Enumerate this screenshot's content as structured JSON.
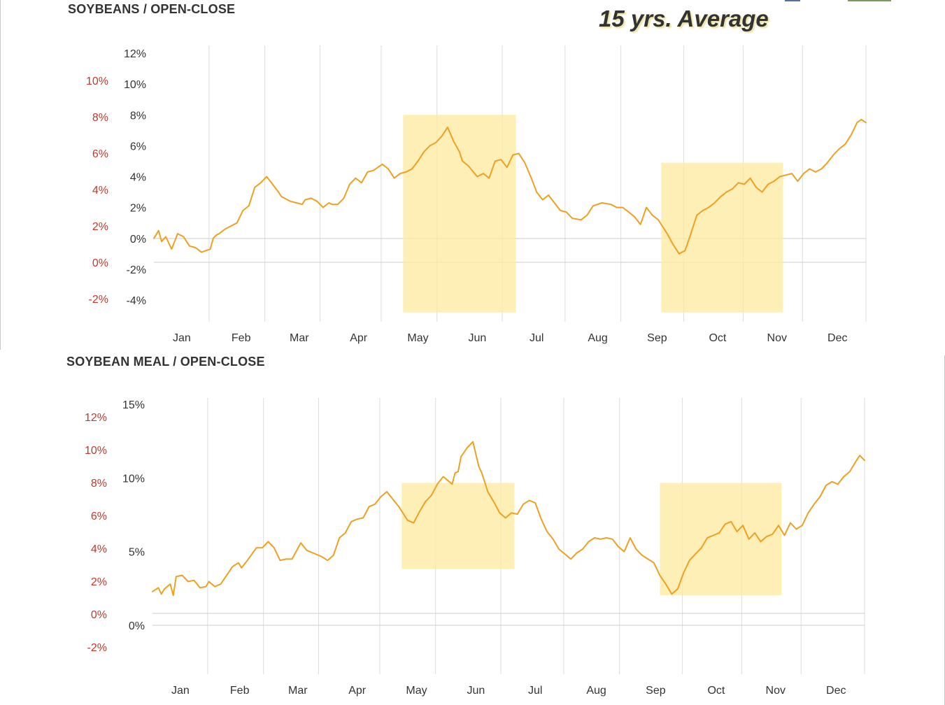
{
  "page": {
    "title": "15 yrs. Average"
  },
  "colors": {
    "line": "#f0a020",
    "highlight": "#fdeba0",
    "grid": "#dddddd",
    "zero_line": "#cccccc",
    "left_axis_text": "#c0392b",
    "right_axis_text": "#333333"
  },
  "chart_data": [
    {
      "type": "line",
      "title": "SOYBEANS / OPEN-CLOSE",
      "months": [
        "Jan",
        "Feb",
        "Mar",
        "Apr",
        "May",
        "Jun",
        "Jul",
        "Aug",
        "Sep",
        "Oct",
        "Nov",
        "Dec"
      ],
      "inner_axis_ticks": [
        "12%",
        "10%",
        "8%",
        "6%",
        "4%",
        "2%",
        "0%",
        "-2%",
        "-4%"
      ],
      "inner_axis_range": [
        -4,
        12
      ],
      "outer_axis_ticks": [
        "10%",
        "8%",
        "6%",
        "4%",
        "2%",
        "0%",
        "-2%"
      ],
      "outer_axis_range": [
        -2,
        10
      ],
      "highlight_periods": [
        {
          "from_month": 4.2,
          "to_month": 6.1,
          "y_top": 8.0,
          "y_bottom": -4.8
        },
        {
          "from_month": 8.55,
          "to_month": 10.6,
          "y_top": 4.9,
          "y_bottom": -4.8
        }
      ],
      "series": [
        {
          "x": [
            0.0,
            0.08,
            0.13,
            0.2,
            0.3,
            0.4,
            0.5,
            0.55,
            0.6,
            0.7,
            0.8,
            0.95,
            1.0,
            1.05,
            1.1,
            1.2,
            1.3,
            1.4,
            1.5,
            1.6,
            1.7,
            1.8,
            1.9,
            2.0,
            2.1,
            2.15,
            2.2,
            2.3,
            2.4,
            2.5,
            2.55,
            2.65,
            2.75,
            2.85,
            2.95,
            3.0,
            3.1,
            3.2,
            3.3,
            3.4,
            3.5,
            3.6,
            3.7,
            3.85,
            3.95,
            4.05,
            4.15,
            4.25,
            4.35,
            4.45,
            4.55,
            4.65,
            4.75,
            4.85,
            4.95,
            5.05,
            5.15,
            5.2,
            5.3,
            5.45,
            5.55,
            5.65,
            5.75,
            5.85,
            5.95,
            6.05,
            6.15,
            6.25,
            6.35,
            6.45,
            6.55,
            6.65,
            6.75,
            6.85,
            6.95,
            7.05,
            7.2,
            7.3,
            7.4,
            7.55,
            7.7,
            7.8,
            7.9,
            8.0,
            8.1,
            8.2,
            8.3,
            8.4,
            8.5,
            8.55,
            8.65,
            8.75,
            8.85,
            8.95,
            9.05,
            9.15,
            9.25,
            9.35,
            9.45,
            9.55,
            9.65,
            9.75,
            9.85,
            9.95,
            10.05,
            10.15,
            10.25,
            10.35,
            10.45,
            10.55,
            10.65,
            10.75,
            10.85,
            10.95,
            11.05,
            11.15,
            11.25,
            11.35,
            11.45,
            11.55,
            11.65,
            11.75,
            11.85,
            11.92,
            12.0
          ],
          "y": [
            0.0,
            0.5,
            -0.2,
            0.1,
            -0.7,
            0.3,
            0.1,
            -0.2,
            -0.5,
            -0.6,
            -0.9,
            -0.7,
            0.0,
            0.2,
            0.3,
            0.6,
            0.8,
            1.0,
            1.8,
            2.1,
            3.3,
            3.6,
            4.0,
            3.5,
            3.0,
            2.7,
            2.6,
            2.4,
            2.3,
            2.2,
            2.5,
            2.6,
            2.4,
            2.0,
            2.3,
            2.2,
            2.2,
            2.6,
            3.5,
            3.9,
            3.6,
            4.3,
            4.4,
            4.8,
            4.5,
            3.9,
            4.2,
            4.3,
            4.5,
            5.0,
            5.6,
            6.0,
            6.2,
            6.6,
            7.2,
            6.3,
            5.6,
            5.0,
            4.7,
            4.0,
            4.2,
            3.9,
            5.0,
            5.1,
            4.6,
            5.4,
            5.5,
            4.9,
            4.0,
            3.0,
            2.5,
            2.8,
            2.3,
            1.8,
            1.7,
            1.3,
            1.2,
            1.5,
            2.1,
            2.3,
            2.2,
            2.0,
            2.0,
            1.7,
            1.4,
            0.9,
            2.0,
            1.5,
            1.2,
            0.9,
            0.3,
            -0.4,
            -1.0,
            -0.8,
            0.3,
            1.5,
            1.8,
            2.0,
            2.3,
            2.7,
            3.0,
            3.2,
            3.6,
            3.5,
            3.9,
            3.3,
            3.0,
            3.5,
            3.7,
            4.0,
            4.1,
            4.2,
            3.7,
            4.2,
            4.5,
            4.3,
            4.5,
            4.9,
            5.4,
            5.8,
            6.1,
            6.7,
            7.5,
            7.7,
            7.5
          ]
        }
      ]
    },
    {
      "type": "line",
      "title": "SOYBEAN MEAL / OPEN-CLOSE",
      "months": [
        "Jan",
        "Feb",
        "Mar",
        "Apr",
        "May",
        "Jun",
        "Jul",
        "Aug",
        "Sep",
        "Oct",
        "Nov",
        "Dec"
      ],
      "inner_axis_ticks": [
        "15%",
        "10%",
        "5%",
        "0%"
      ],
      "inner_axis_range": [
        -2.7,
        15
      ],
      "outer_axis_ticks": [
        "12%",
        "10%",
        "8%",
        "6%",
        "4%",
        "2%",
        "0%",
        "-2%"
      ],
      "outer_axis_range": [
        -2,
        12
      ],
      "highlight_periods": [
        {
          "from_month": 4.2,
          "to_month": 6.1,
          "y_top": 8.7,
          "y_bottom": 1.8
        },
        {
          "from_month": 8.55,
          "to_month": 10.6,
          "y_top": 8.7,
          "y_bottom": -0.3
        }
      ],
      "series": [
        {
          "x": [
            0.0,
            0.1,
            0.15,
            0.2,
            0.3,
            0.35,
            0.4,
            0.5,
            0.6,
            0.7,
            0.8,
            0.9,
            0.95,
            1.05,
            1.15,
            1.25,
            1.35,
            1.45,
            1.5,
            1.6,
            1.75,
            1.85,
            1.95,
            2.05,
            2.15,
            2.25,
            2.35,
            2.5,
            2.6,
            2.7,
            2.85,
            2.95,
            3.05,
            3.15,
            3.25,
            3.35,
            3.45,
            3.55,
            3.65,
            3.75,
            3.85,
            3.95,
            4.05,
            4.15,
            4.3,
            4.4,
            4.5,
            4.6,
            4.7,
            4.8,
            4.9,
            5.0,
            5.05,
            5.1,
            5.15,
            5.2,
            5.3,
            5.4,
            5.5,
            5.55,
            5.65,
            5.75,
            5.85,
            5.95,
            6.05,
            6.15,
            6.25,
            6.35,
            6.45,
            6.55,
            6.65,
            6.75,
            6.85,
            6.95,
            7.05,
            7.15,
            7.25,
            7.35,
            7.45,
            7.55,
            7.65,
            7.75,
            7.85,
            7.95,
            8.05,
            8.15,
            8.25,
            8.35,
            8.45,
            8.55,
            8.65,
            8.75,
            8.85,
            8.95,
            9.05,
            9.15,
            9.25,
            9.35,
            9.45,
            9.55,
            9.65,
            9.75,
            9.85,
            9.95,
            10.05,
            10.15,
            10.25,
            10.35,
            10.45,
            10.55,
            10.65,
            10.75,
            10.85,
            10.95,
            11.05,
            11.15,
            11.25,
            11.35,
            11.45,
            11.55,
            11.65,
            11.75,
            11.85,
            11.92,
            12.0
          ],
          "y": [
            0.0,
            0.3,
            -0.2,
            0.2,
            0.6,
            -0.3,
            1.2,
            1.3,
            0.8,
            0.9,
            0.3,
            0.4,
            0.8,
            0.4,
            0.6,
            1.3,
            2.0,
            2.3,
            1.9,
            2.5,
            3.5,
            3.5,
            4.0,
            3.5,
            2.5,
            2.6,
            2.6,
            3.9,
            3.3,
            3.1,
            2.8,
            2.5,
            2.9,
            4.3,
            4.7,
            5.6,
            5.8,
            5.9,
            6.8,
            7.0,
            7.6,
            8.0,
            7.4,
            6.8,
            5.7,
            5.5,
            6.4,
            7.2,
            7.7,
            8.6,
            9.2,
            8.8,
            8.6,
            9.5,
            9.6,
            10.8,
            11.5,
            12.0,
            10.0,
            9.5,
            8.0,
            7.2,
            6.3,
            5.9,
            6.3,
            6.2,
            7.0,
            7.3,
            7.1,
            5.8,
            4.8,
            4.2,
            3.4,
            3.0,
            2.6,
            3.1,
            3.4,
            4.0,
            4.3,
            4.2,
            4.3,
            4.2,
            3.6,
            3.2,
            4.3,
            3.4,
            2.9,
            2.6,
            2.3,
            1.3,
            0.6,
            -0.2,
            0.2,
            1.5,
            2.5,
            3.0,
            3.5,
            4.3,
            4.5,
            4.7,
            5.4,
            5.6,
            4.8,
            5.3,
            4.2,
            4.7,
            4.0,
            4.4,
            4.6,
            5.3,
            4.5,
            5.5,
            5.0,
            5.3,
            6.3,
            7.0,
            7.6,
            8.5,
            8.8,
            8.6,
            9.2,
            9.6,
            10.4,
            10.9,
            10.5
          ]
        }
      ]
    }
  ]
}
